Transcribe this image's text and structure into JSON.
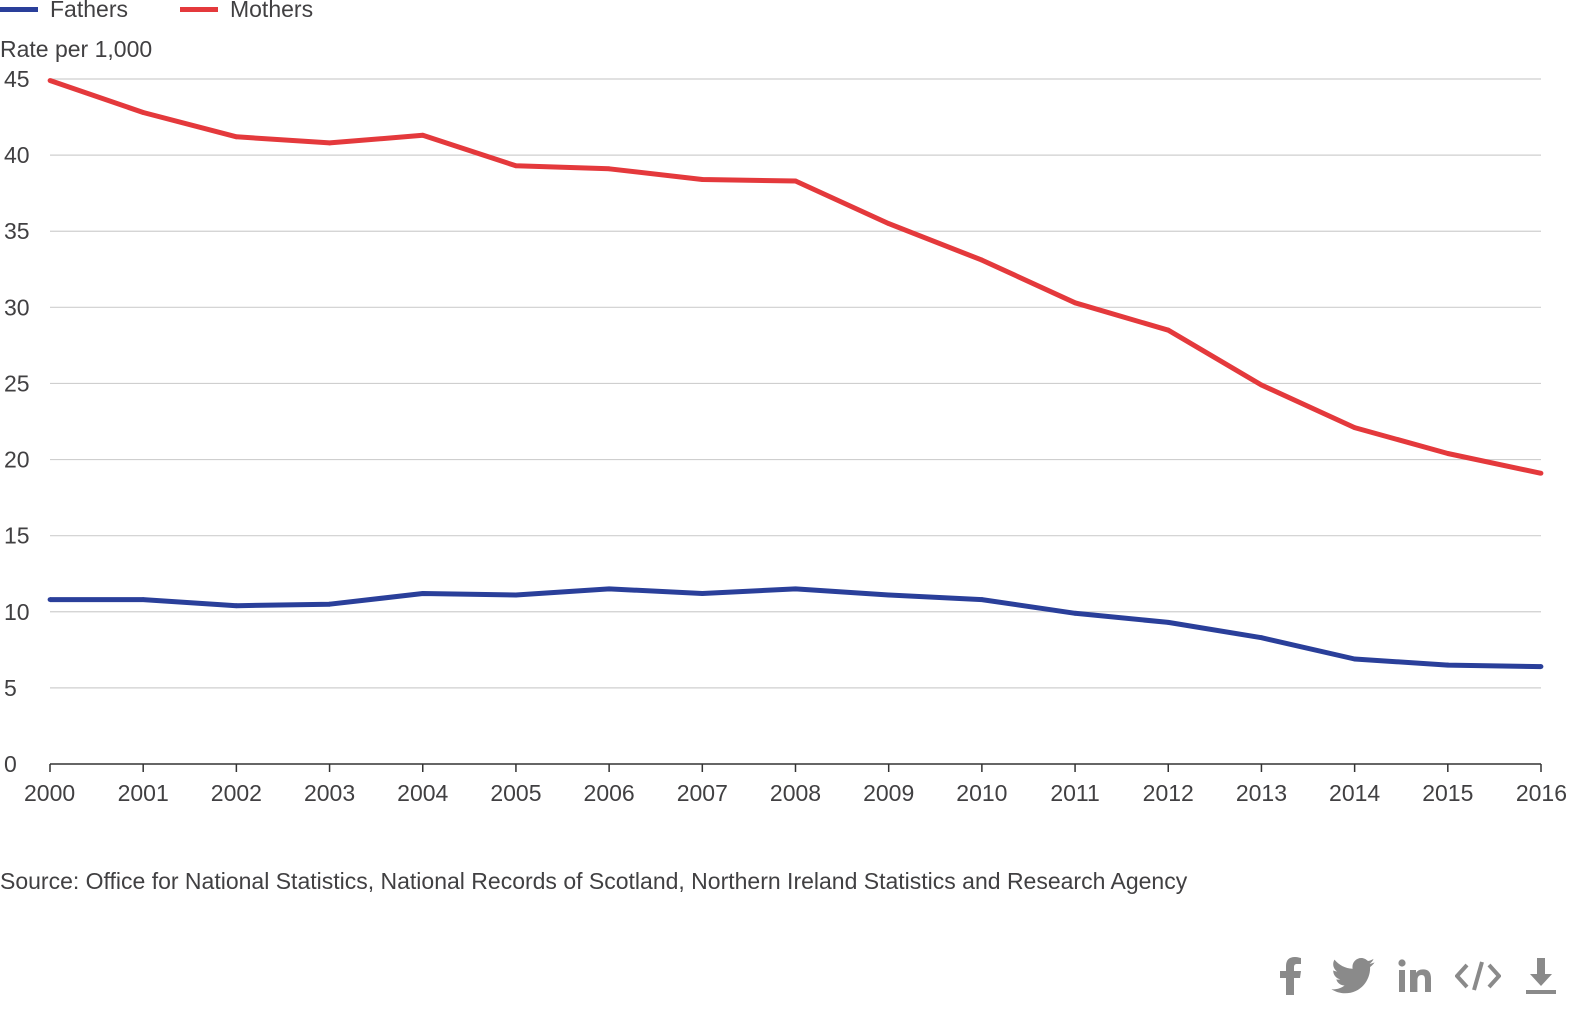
{
  "legend": [
    {
      "name": "Fathers",
      "color": "#206095"
    },
    {
      "name": "Mothers",
      "color": "#e4393c"
    }
  ],
  "source_text": "Source: Office for National Statistics, National Records of Scotland, Northern Ireland Statistics and Research Agency",
  "share_icons": [
    "facebook-icon",
    "twitter-icon",
    "linkedin-icon",
    "embed-code-icon",
    "download-icon"
  ],
  "chart_data": {
    "type": "line",
    "title": "",
    "xlabel": "",
    "ylabel": "Rate per 1,000",
    "x": [
      "2000",
      "2001",
      "2002",
      "2003",
      "2004",
      "2005",
      "2006",
      "2007",
      "2008",
      "2009",
      "2010",
      "2011",
      "2012",
      "2013",
      "2014",
      "2015",
      "2016"
    ],
    "yticks": [
      "0",
      "5",
      "10",
      "15",
      "20",
      "25",
      "30",
      "35",
      "40",
      "45"
    ],
    "ylim": [
      0,
      45
    ],
    "grid": true,
    "legend_position": "top-left",
    "series": [
      {
        "name": "Fathers",
        "color": "#2a3f9a",
        "values": [
          10.8,
          10.8,
          10.4,
          10.5,
          11.2,
          11.1,
          11.5,
          11.2,
          11.5,
          11.1,
          10.8,
          9.9,
          9.3,
          8.3,
          6.9,
          6.5,
          6.4
        ]
      },
      {
        "name": "Mothers",
        "color": "#e4393c",
        "values": [
          44.9,
          42.8,
          41.2,
          40.8,
          41.3,
          39.3,
          39.1,
          38.4,
          38.3,
          35.5,
          33.1,
          30.3,
          28.5,
          24.9,
          22.1,
          20.4,
          19.1
        ]
      }
    ]
  }
}
